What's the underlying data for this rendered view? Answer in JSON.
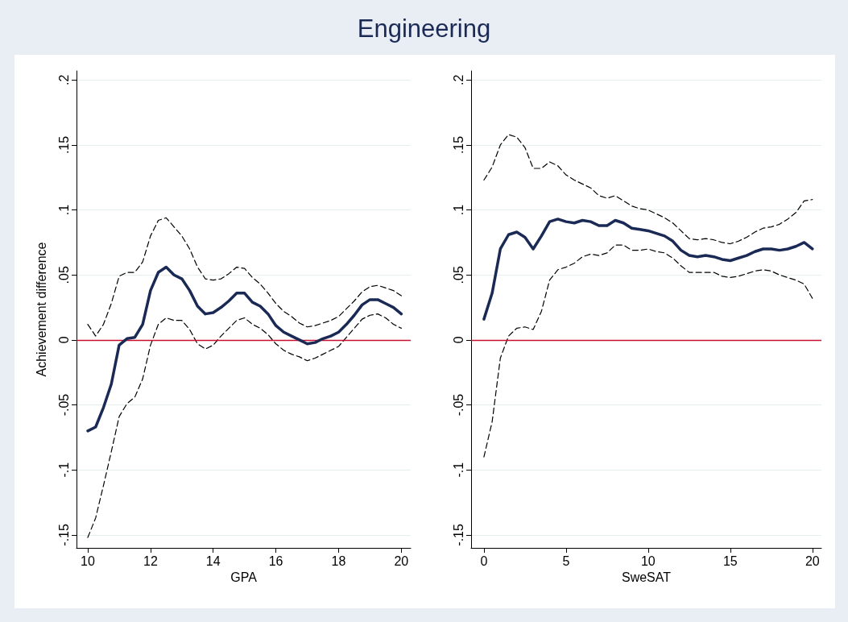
{
  "chart_data": [
    {
      "type": "line",
      "title": "Engineering",
      "xlabel": "GPA",
      "ylabel": "Achievement difference",
      "x": [
        10,
        10.25,
        10.5,
        10.75,
        11,
        11.25,
        11.5,
        11.75,
        12,
        12.25,
        12.5,
        12.75,
        13,
        13.25,
        13.5,
        13.75,
        14,
        14.25,
        14.5,
        14.75,
        15,
        15.25,
        15.5,
        15.75,
        16,
        16.25,
        16.5,
        16.75,
        17,
        17.25,
        17.5,
        17.75,
        18,
        18.25,
        18.5,
        18.75,
        19,
        19.25,
        19.5,
        19.75,
        20
      ],
      "series": [
        {
          "color": "#000000",
          "line_style": "dashed",
          "values": [
            0.012,
            0.003,
            0.012,
            0.028,
            0.049,
            0.052,
            0.052,
            0.06,
            0.08,
            0.092,
            0.094,
            0.087,
            0.08,
            0.07,
            0.056,
            0.047,
            0.046,
            0.047,
            0.051,
            0.056,
            0.055,
            0.048,
            0.043,
            0.036,
            0.028,
            0.022,
            0.018,
            0.013,
            0.01,
            0.011,
            0.013,
            0.015,
            0.018,
            0.024,
            0.03,
            0.037,
            0.041,
            0.042,
            0.04,
            0.038,
            0.034
          ]
        },
        {
          "color": "#000000",
          "line_style": "dashed",
          "values": [
            -0.152,
            -0.137,
            -0.112,
            -0.086,
            -0.059,
            -0.049,
            -0.044,
            -0.03,
            -0.004,
            0.012,
            0.017,
            0.015,
            0.015,
            0.008,
            -0.003,
            -0.007,
            -0.004,
            0.003,
            0.009,
            0.015,
            0.017,
            0.012,
            0.009,
            0.004,
            -0.003,
            -0.008,
            -0.011,
            -0.013,
            -0.016,
            -0.014,
            -0.011,
            -0.008,
            -0.005,
            0.002,
            0.009,
            0.016,
            0.019,
            0.02,
            0.017,
            0.012,
            0.009
          ]
        },
        {
          "color": "#1a2a55",
          "line_style": "solid",
          "values": [
            -0.07,
            -0.067,
            -0.052,
            -0.034,
            -0.004,
            0.001,
            0.002,
            0.012,
            0.038,
            0.052,
            0.056,
            0.05,
            0.047,
            0.038,
            0.026,
            0.02,
            0.021,
            0.025,
            0.03,
            0.036,
            0.036,
            0.029,
            0.026,
            0.02,
            0.011,
            0.006,
            0.003,
            0.0,
            -0.003,
            -0.002,
            0.001,
            0.003,
            0.006,
            0.012,
            0.019,
            0.027,
            0.031,
            0.031,
            0.028,
            0.025,
            0.02
          ]
        }
      ],
      "xlim": [
        9.64,
        20.3
      ],
      "xticks": [
        10,
        12,
        14,
        16,
        18,
        20
      ],
      "ylim": [
        -0.16,
        0.207
      ],
      "yticks": [
        {
          "value": -0.15,
          "label": "-.15"
        },
        {
          "value": -0.1,
          "label": "-.1"
        },
        {
          "value": -0.05,
          "label": "-.05"
        },
        0,
        {
          "value": 0.05,
          "label": ".05"
        },
        {
          "value": 0.1,
          "label": ".1"
        },
        {
          "value": 0.15,
          "label": ".15"
        },
        {
          "value": 0.2,
          "label": ".2"
        }
      ],
      "grid": "y",
      "marker": "none",
      "ref_lines": [
        {
          "axis": "y",
          "value": 0,
          "color": "#c8102e"
        }
      ]
    },
    {
      "type": "line",
      "xlabel": "SweSAT",
      "x": [
        0,
        0.5,
        1,
        1.5,
        2,
        2.5,
        3,
        3.5,
        4,
        4.5,
        5,
        5.5,
        6,
        6.5,
        7,
        7.5,
        8,
        8.5,
        9,
        9.5,
        10,
        10.5,
        11,
        11.5,
        12,
        12.5,
        13,
        13.5,
        14,
        14.5,
        15,
        15.5,
        16,
        16.5,
        17,
        17.5,
        18,
        18.5,
        19,
        19.5,
        20
      ],
      "series": [
        {
          "color": "#000000",
          "line_style": "dashed",
          "values": [
            0.123,
            0.133,
            0.15,
            0.158,
            0.156,
            0.148,
            0.132,
            0.132,
            0.137,
            0.134,
            0.127,
            0.123,
            0.12,
            0.117,
            0.111,
            0.109,
            0.111,
            0.107,
            0.103,
            0.101,
            0.1,
            0.097,
            0.094,
            0.09,
            0.084,
            0.078,
            0.077,
            0.078,
            0.077,
            0.075,
            0.074,
            0.076,
            0.079,
            0.083,
            0.086,
            0.087,
            0.089,
            0.093,
            0.098,
            0.107,
            0.108
          ]
        },
        {
          "color": "#000000",
          "line_style": "dashed",
          "values": [
            -0.09,
            -0.063,
            -0.014,
            0.003,
            0.009,
            0.01,
            0.008,
            0.022,
            0.046,
            0.054,
            0.056,
            0.059,
            0.064,
            0.066,
            0.065,
            0.067,
            0.073,
            0.073,
            0.069,
            0.069,
            0.07,
            0.068,
            0.067,
            0.063,
            0.057,
            0.052,
            0.052,
            0.052,
            0.052,
            0.049,
            0.048,
            0.049,
            0.051,
            0.053,
            0.054,
            0.053,
            0.05,
            0.048,
            0.046,
            0.043,
            0.032
          ]
        },
        {
          "color": "#1a2a55",
          "line_style": "solid",
          "values": [
            0.016,
            0.036,
            0.07,
            0.081,
            0.083,
            0.079,
            0.07,
            0.08,
            0.091,
            0.093,
            0.091,
            0.09,
            0.092,
            0.091,
            0.088,
            0.088,
            0.092,
            0.09,
            0.086,
            0.085,
            0.084,
            0.082,
            0.08,
            0.076,
            0.069,
            0.065,
            0.064,
            0.065,
            0.064,
            0.062,
            0.061,
            0.063,
            0.065,
            0.068,
            0.07,
            0.07,
            0.069,
            0.07,
            0.072,
            0.075,
            0.07
          ]
        }
      ],
      "xlim": [
        -0.78,
        20.55
      ],
      "xticks": [
        0,
        5,
        10,
        15,
        20
      ],
      "ylim": [
        -0.16,
        0.207
      ],
      "yticks": [
        {
          "value": -0.15,
          "label": "-.15"
        },
        {
          "value": -0.1,
          "label": "-.1"
        },
        {
          "value": -0.05,
          "label": "-.05"
        },
        0,
        {
          "value": 0.05,
          "label": ".05"
        },
        {
          "value": 0.1,
          "label": ".1"
        },
        {
          "value": 0.15,
          "label": ".15"
        },
        {
          "value": 0.2,
          "label": ".2"
        }
      ],
      "grid": "y",
      "marker": "none",
      "ref_lines": [
        {
          "axis": "y",
          "value": 0,
          "color": "#c8102e"
        }
      ]
    }
  ]
}
